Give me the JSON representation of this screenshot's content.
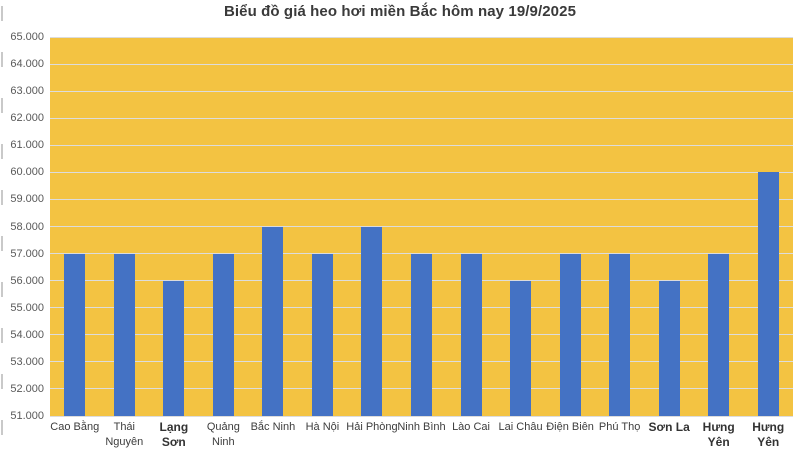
{
  "chart_data": {
    "type": "bar",
    "title": "Biểu đồ giá heo hơi miền Bắc hôm nay 19/9/2025",
    "xlabel": "",
    "ylabel": "",
    "legend": "none",
    "grid": true,
    "ylim": [
      51000,
      65000
    ],
    "ytick_step": 1000,
    "ytick_labels": [
      "65.000",
      "64.000",
      "63.000",
      "62.000",
      "61.000",
      "60.000",
      "59.000",
      "58.000",
      "57.000",
      "56.000",
      "55.000",
      "54.000",
      "53.000",
      "52.000",
      "51.000"
    ],
    "categories": [
      {
        "name": "Cao Bằng",
        "lines": [
          "Cao Bằng"
        ],
        "value": 57000,
        "bold": false
      },
      {
        "name": "Thái Nguyên",
        "lines": [
          "Thái",
          "Nguyên"
        ],
        "value": 57000,
        "bold": false
      },
      {
        "name": "Lạng Sơn",
        "lines": [
          "Lạng",
          "Sơn"
        ],
        "value": 56000,
        "bold": true
      },
      {
        "name": "Quảng Ninh",
        "lines": [
          "Quảng",
          "Ninh"
        ],
        "value": 57000,
        "bold": false
      },
      {
        "name": "Bắc Ninh",
        "lines": [
          "Bắc Ninh"
        ],
        "value": 58000,
        "bold": false
      },
      {
        "name": "Hà Nội",
        "lines": [
          "Hà Nội"
        ],
        "value": 57000,
        "bold": false
      },
      {
        "name": "Hải Phòng",
        "lines": [
          "Hải Phòng"
        ],
        "value": 58000,
        "bold": false
      },
      {
        "name": "Ninh Bình",
        "lines": [
          "Ninh Bình"
        ],
        "value": 57000,
        "bold": false
      },
      {
        "name": "Lào Cai",
        "lines": [
          "Lào Cai"
        ],
        "value": 57000,
        "bold": false
      },
      {
        "name": "Lai Châu",
        "lines": [
          "Lai Châu"
        ],
        "value": 56000,
        "bold": false
      },
      {
        "name": "Điện Biên",
        "lines": [
          "Điện Biên"
        ],
        "value": 57000,
        "bold": false
      },
      {
        "name": "Phú Thọ",
        "lines": [
          "Phú Thọ"
        ],
        "value": 57000,
        "bold": false
      },
      {
        "name": "Sơn La",
        "lines": [
          "Sơn La"
        ],
        "value": 56000,
        "bold": true
      },
      {
        "name": "Hưng Yên",
        "lines": [
          "Hưng",
          "Yên"
        ],
        "value": 57000,
        "bold": true
      },
      {
        "name": "Hưng Yên",
        "lines": [
          "Hưng",
          "Yên"
        ],
        "value": 60000,
        "bold": true
      }
    ],
    "colors": {
      "bar": "#4472c4",
      "plot_bg": "#f3c342",
      "gridline": "#dcdcdc",
      "title": "#3a3a3a",
      "y_label": "#595959",
      "x_label": "#3d3d3d",
      "page_bg": "#ffffff"
    }
  }
}
